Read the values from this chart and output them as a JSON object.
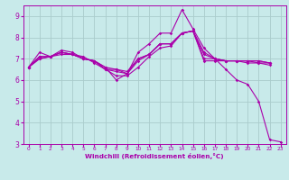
{
  "bg_color": "#c8eaea",
  "line_color": "#aa00aa",
  "grid_color": "#aacccc",
  "xlabel": "Windchill (Refroidissement éolien,°C)",
  "xlim": [
    -0.5,
    23.5
  ],
  "ylim": [
    3,
    9.5
  ],
  "yticks": [
    3,
    4,
    5,
    6,
    7,
    8,
    9
  ],
  "xticks": [
    0,
    1,
    2,
    3,
    4,
    5,
    6,
    7,
    8,
    9,
    10,
    11,
    12,
    13,
    14,
    15,
    16,
    17,
    18,
    19,
    20,
    21,
    22,
    23
  ],
  "lines": [
    {
      "x": [
        0,
        1,
        2,
        3,
        4,
        5,
        6,
        7,
        8,
        9,
        10,
        11,
        12,
        13,
        14,
        15,
        16,
        17,
        18,
        19,
        20,
        21,
        22,
        23
      ],
      "y": [
        6.6,
        7.3,
        7.1,
        7.4,
        7.3,
        7.0,
        6.9,
        6.6,
        6.0,
        6.3,
        7.3,
        7.7,
        8.2,
        8.2,
        9.3,
        8.4,
        7.5,
        7.0,
        6.5,
        6.0,
        5.8,
        5.0,
        3.2,
        3.1
      ]
    },
    {
      "x": [
        0,
        1,
        2,
        3,
        4,
        5,
        6,
        7,
        8,
        9,
        10,
        11,
        12,
        13,
        14,
        15,
        16,
        17,
        18,
        19,
        20,
        21,
        22
      ],
      "y": [
        6.6,
        7.1,
        7.1,
        7.3,
        7.2,
        7.0,
        6.9,
        6.5,
        6.4,
        6.3,
        6.9,
        7.2,
        7.7,
        7.7,
        8.2,
        8.3,
        6.9,
        6.9,
        6.9,
        6.9,
        6.9,
        6.9,
        6.8
      ]
    },
    {
      "x": [
        0,
        1,
        2,
        3,
        4,
        5,
        6,
        7,
        8,
        9,
        10,
        11,
        12,
        13,
        14,
        15,
        16,
        17,
        18,
        19,
        20,
        21,
        22
      ],
      "y": [
        6.6,
        7.1,
        7.1,
        7.3,
        7.2,
        7.1,
        6.8,
        6.5,
        6.2,
        6.2,
        6.6,
        7.1,
        7.5,
        7.6,
        8.2,
        8.3,
        7.0,
        7.0,
        6.9,
        6.9,
        6.9,
        6.9,
        6.8
      ]
    },
    {
      "x": [
        0,
        1,
        2,
        3,
        4,
        5,
        6,
        7,
        8,
        9,
        10,
        11,
        12,
        13,
        14,
        15,
        16,
        17,
        18,
        19,
        20,
        21,
        22
      ],
      "y": [
        6.6,
        7.0,
        7.1,
        7.3,
        7.2,
        7.0,
        6.9,
        6.6,
        6.5,
        6.4,
        7.0,
        7.2,
        7.7,
        7.7,
        8.2,
        8.3,
        7.2,
        7.0,
        6.9,
        6.9,
        6.9,
        6.8,
        6.8
      ]
    },
    {
      "x": [
        0,
        1,
        2,
        3,
        4,
        5,
        6,
        7,
        8,
        9,
        10,
        11,
        12,
        13,
        14,
        15,
        16,
        17,
        18,
        19,
        20,
        21,
        22
      ],
      "y": [
        6.6,
        7.0,
        7.1,
        7.2,
        7.2,
        7.0,
        6.9,
        6.5,
        6.5,
        6.3,
        7.0,
        7.2,
        7.7,
        7.7,
        8.2,
        8.3,
        7.3,
        7.0,
        6.9,
        6.9,
        6.8,
        6.8,
        6.7
      ]
    }
  ]
}
